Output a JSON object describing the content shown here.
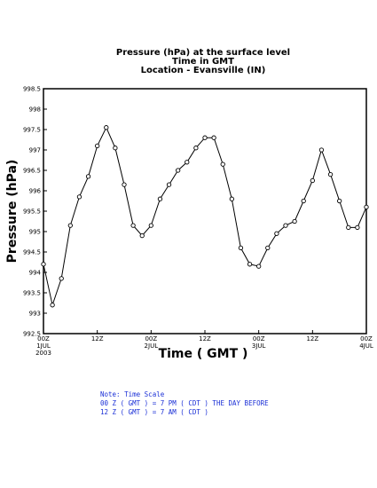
{
  "chart_data": {
    "type": "line",
    "title_lines": [
      "Pressure (hPa) at the surface level",
      "Time in GMT",
      "Location - Evansville (IN)"
    ],
    "xlabel": "Time ( GMT )",
    "ylabel": "Pressure (hPa)",
    "ylim": [
      992.5,
      998.5
    ],
    "y_ticks": [
      {
        "value": 992.5,
        "label": "992.5"
      },
      {
        "value": 993,
        "label": "993"
      },
      {
        "value": 993.5,
        "label": "993.5"
      },
      {
        "value": 994,
        "label": "994"
      },
      {
        "value": 994.5,
        "label": "994.5"
      },
      {
        "value": 995,
        "label": "995"
      },
      {
        "value": 995.5,
        "label": "995.5"
      },
      {
        "value": 996,
        "label": "996"
      },
      {
        "value": 996.5,
        "label": "996.5"
      },
      {
        "value": 997,
        "label": "997"
      },
      {
        "value": 997.5,
        "label": "997.5"
      },
      {
        "value": 998,
        "label": "998"
      },
      {
        "value": 998.5,
        "label": "998.5"
      }
    ],
    "x_ticks": [
      {
        "hour": 0,
        "lines": [
          "00Z",
          "1JUL",
          "2003"
        ]
      },
      {
        "hour": 12,
        "lines": [
          "12Z"
        ]
      },
      {
        "hour": 24,
        "lines": [
          "00Z",
          "2JUL"
        ]
      },
      {
        "hour": 36,
        "lines": [
          "12Z"
        ]
      },
      {
        "hour": 48,
        "lines": [
          "00Z",
          "3JUL"
        ]
      },
      {
        "hour": 60,
        "lines": [
          "12Z"
        ]
      },
      {
        "hour": 72,
        "lines": [
          "00Z",
          "4JUL"
        ]
      }
    ],
    "xlim": [
      0,
      72
    ],
    "grid": false,
    "series": [
      {
        "x": [
          0,
          2,
          4,
          6,
          8,
          10,
          12,
          14,
          16,
          18,
          20,
          22,
          24,
          26,
          28,
          30,
          32,
          34,
          36,
          38,
          40,
          42,
          44,
          46,
          48,
          50,
          52,
          54,
          56,
          58,
          60,
          62,
          64,
          66,
          68,
          70,
          72
        ],
        "values": [
          994.2,
          993.2,
          993.85,
          995.15,
          995.85,
          996.35,
          997.1,
          997.55,
          997.05,
          996.15,
          995.15,
          994.9,
          995.15,
          995.8,
          996.15,
          996.5,
          996.7,
          997.05,
          997.3,
          997.3,
          996.65,
          995.8,
          994.6,
          994.2,
          994.15,
          994.6,
          994.95,
          995.15,
          995.25,
          995.75,
          996.25,
          997.0,
          996.4,
          995.75,
          995.1,
          995.1,
          995.6
        ]
      }
    ]
  },
  "notes": [
    "Note: Time Scale",
    "00 Z ( GMT ) = 7 PM ( CDT ) THE DAY BEFORE",
    "12 Z ( GMT ) = 7 AM ( CDT )"
  ]
}
